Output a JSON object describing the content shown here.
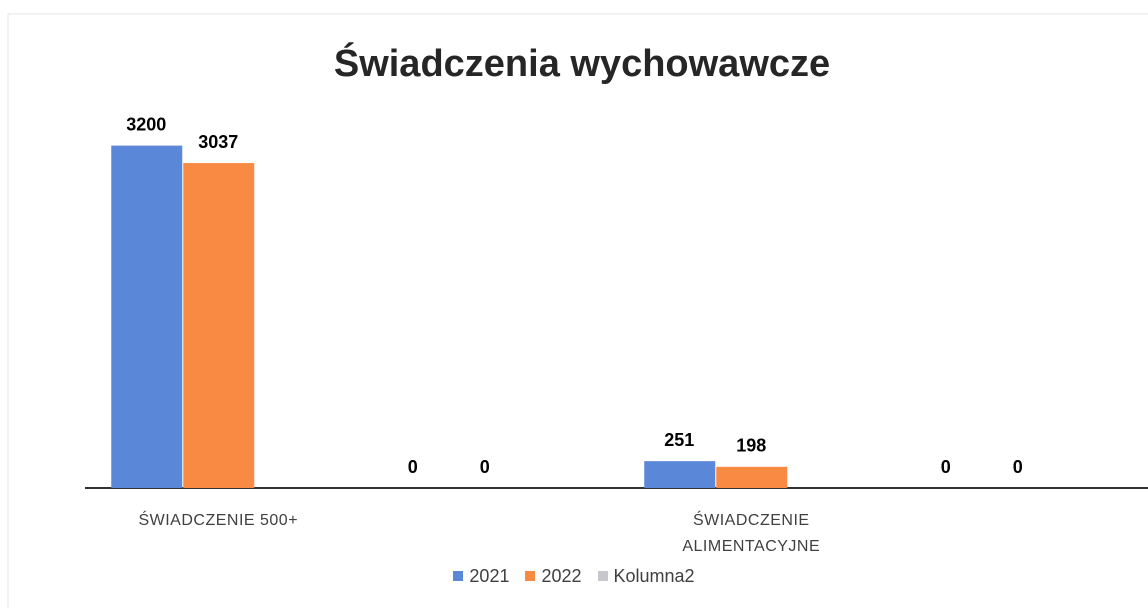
{
  "chart_data": {
    "type": "bar",
    "title": "Świadczenia wychowawcze",
    "categories": [
      "ŚWIADCZENIE 500+",
      null,
      "ŚWIADCZENIE ALIMENTACYJNE",
      null
    ],
    "series": [
      {
        "name": "2021",
        "color": "#5b87d8",
        "values": [
          3200,
          0,
          251,
          0
        ]
      },
      {
        "name": "2022",
        "color": "#f98a43",
        "values": [
          3037,
          0,
          198,
          0
        ]
      },
      {
        "name": "Kolumna2",
        "color": "#c8c8cc",
        "values": [
          null,
          null,
          null,
          null
        ]
      }
    ],
    "legend": "bottom"
  }
}
